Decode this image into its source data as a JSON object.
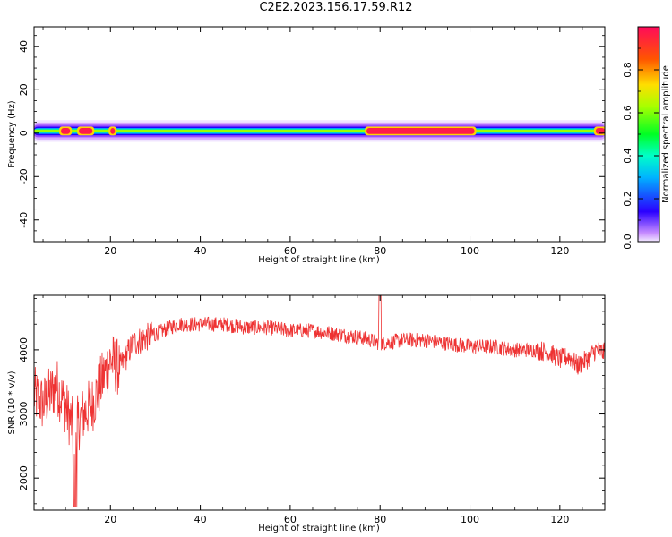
{
  "title": "C2E2.2023.156.17.59.R12",
  "chart_data": [
    {
      "type": "heatmap",
      "xlabel": "Height of straight line (km)",
      "ylabel": "Frequency (Hz)",
      "xlim": [
        3,
        130
      ],
      "ylim": [
        -50,
        49
      ],
      "xticks": [
        20,
        40,
        60,
        80,
        100,
        120
      ],
      "yticks": [
        -40,
        -20,
        0,
        20,
        40
      ],
      "colorbar": {
        "label": "Normalized spectral amplitude",
        "range": [
          0,
          1
        ],
        "ticks": [
          "0.0",
          "0.2",
          "0.4",
          "0.6",
          "0.8"
        ],
        "colormap": "gist_rainbow_r"
      },
      "band": {
        "center_hz": 1,
        "halfwidth_hz": 5,
        "hot_spots_km": [
          [
            9,
            11
          ],
          [
            13,
            16
          ],
          [
            20,
            21
          ],
          [
            77,
            101
          ],
          [
            128,
            130
          ]
        ]
      }
    },
    {
      "type": "line",
      "xlabel": "Height of straight line (km)",
      "ylabel": "SNR (10 * v/v)",
      "xlim": [
        3,
        130
      ],
      "ylim": [
        1500,
        4850
      ],
      "xticks": [
        20,
        40,
        60,
        80,
        100,
        120
      ],
      "yticks": [
        2000,
        3000,
        4000
      ],
      "color": "#ee3333",
      "trend": {
        "x": [
          3,
          5,
          8,
          10,
          12,
          14,
          16,
          18,
          20,
          22,
          25,
          30,
          35,
          40,
          45,
          50,
          55,
          60,
          65,
          70,
          75,
          78,
          80,
          85,
          90,
          95,
          100,
          105,
          110,
          115,
          118,
          120,
          122,
          124,
          126,
          128,
          130
        ],
        "y": [
          3300,
          3150,
          3450,
          3100,
          2750,
          3000,
          3150,
          3500,
          3850,
          3700,
          4100,
          4250,
          4400,
          4400,
          4400,
          4350,
          4350,
          4300,
          4300,
          4250,
          4200,
          4150,
          4100,
          4150,
          4150,
          4100,
          4050,
          4050,
          4000,
          4000,
          3950,
          3850,
          3900,
          3750,
          3850,
          4000,
          3950
        ]
      }
    }
  ]
}
